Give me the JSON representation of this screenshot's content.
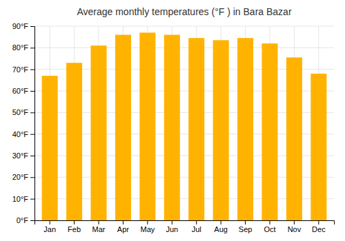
{
  "chart_data": {
    "type": "bar",
    "title": "Average monthly temperatures (°F ) in Bara Bazar",
    "categories": [
      "Jan",
      "Feb",
      "Mar",
      "Apr",
      "May",
      "Jun",
      "Jul",
      "Aug",
      "Sep",
      "Oct",
      "Nov",
      "Dec"
    ],
    "values": [
      67,
      73,
      81,
      86,
      87,
      86,
      84.5,
      83.5,
      84.5,
      82,
      75.5,
      68
    ],
    "color": "#FFB300",
    "ylim": [
      0,
      90
    ],
    "yticks": [
      {
        "value": 0,
        "label": "0°F"
      },
      {
        "value": 10,
        "label": "10°F"
      },
      {
        "value": 20,
        "label": "20°F"
      },
      {
        "value": 30,
        "label": "30°F"
      },
      {
        "value": 40,
        "label": "40°F"
      },
      {
        "value": 50,
        "label": "50°F"
      },
      {
        "value": 60,
        "label": "60°F"
      },
      {
        "value": 70,
        "label": "70°F"
      },
      {
        "value": 80,
        "label": "80°F"
      },
      {
        "value": 90,
        "label": "90°F"
      }
    ],
    "grid": true
  }
}
